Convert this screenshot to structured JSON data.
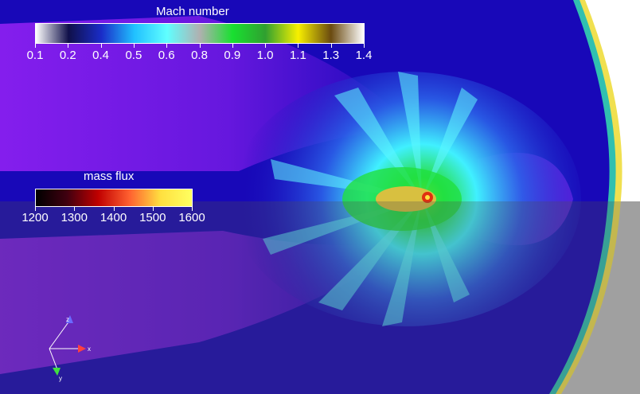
{
  "mach_legend": {
    "title": "Mach number",
    "ticks": [
      "0.1",
      "0.2",
      "0.4",
      "0.5",
      "0.6",
      "0.8",
      "0.9",
      "1.0",
      "1.1",
      "1.3",
      "1.4"
    ],
    "colors": [
      "#ffffff",
      "#10104a",
      "#1a2cc8",
      "#20c0ff",
      "#60ffff",
      "#b0b0b0",
      "#18e030",
      "#30a030",
      "#f8f000",
      "#6a4a10",
      "#ffffff"
    ]
  },
  "flux_legend": {
    "title": "mass flux",
    "ticks": [
      "1200",
      "1300",
      "1400",
      "1500",
      "1600"
    ],
    "colors": [
      "#000000",
      "#400010",
      "#c00000",
      "#ff6030",
      "#ffe040",
      "#ffff60"
    ]
  },
  "axes": {
    "x": "x",
    "y": "y",
    "z": "z"
  },
  "colors": {
    "background_violet": "#8a1ff0",
    "deep_blue": "#1808b8",
    "lower_band_shade": "#505050",
    "right_gray": "#c0c0c0"
  }
}
